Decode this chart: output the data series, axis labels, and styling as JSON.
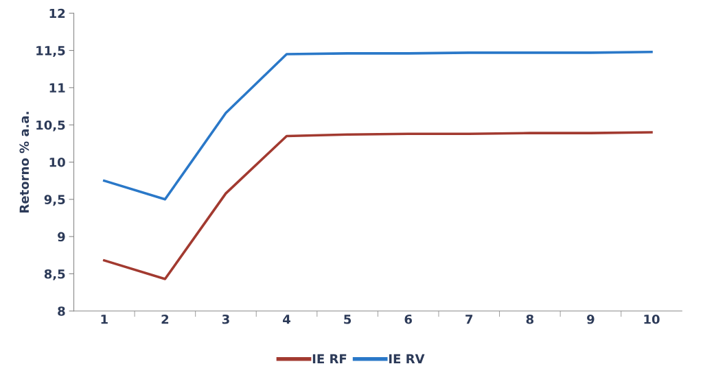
{
  "chart_data": {
    "type": "line",
    "ylabel": "Retorno % a.a.",
    "categories": [
      "1",
      "2",
      "3",
      "4",
      "5",
      "6",
      "7",
      "8",
      "9",
      "10"
    ],
    "series": [
      {
        "name": "IE RF",
        "color": "#a23a30",
        "values": [
          8.68,
          8.43,
          9.58,
          10.35,
          10.37,
          10.38,
          10.38,
          10.39,
          10.39,
          10.4
        ]
      },
      {
        "name": "IE RV",
        "color": "#2a78c8",
        "values": [
          9.75,
          9.5,
          10.66,
          11.45,
          11.46,
          11.46,
          11.47,
          11.47,
          11.47,
          11.48
        ]
      }
    ],
    "ylim": [
      8,
      12
    ],
    "yticks": [
      8,
      {
        "value": 8.5,
        "label": "8,5"
      },
      9,
      {
        "value": 9.5,
        "label": "9,5"
      },
      10,
      {
        "value": 10.5,
        "label": "10,5"
      },
      11,
      {
        "value": 11.5,
        "label": "11,5"
      },
      12
    ],
    "grid": false,
    "legend": "bottom",
    "marker": "none",
    "line_style": "solid"
  }
}
